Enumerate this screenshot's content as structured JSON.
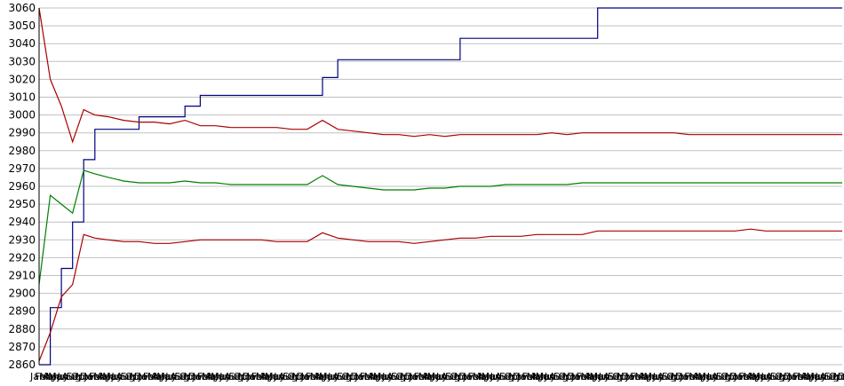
{
  "chart_data": {
    "type": "line",
    "title": "",
    "xlabel": "",
    "ylabel": "",
    "ylim": [
      2860,
      3060
    ],
    "yticks": [
      2860,
      2870,
      2880,
      2890,
      2900,
      2910,
      2920,
      2930,
      2940,
      2950,
      2960,
      2970,
      2980,
      2990,
      3000,
      3010,
      3020,
      3030,
      3040,
      3050,
      3060
    ],
    "grid": true,
    "legend": "none",
    "x_months_repeating": [
      "Jan",
      "Feb",
      "Mar",
      "Apr",
      "May",
      "Jun",
      "Jul",
      "Aug",
      "Sep",
      "Oct",
      "Nov",
      "Dec"
    ],
    "x_periods": 15,
    "series": [
      {
        "color": "#00007f",
        "values": [
          2860,
          2892,
          2914,
          2940,
          2975,
          2992,
          2992,
          2992,
          2999,
          2999,
          2999,
          3005,
          3011,
          3011,
          3011,
          3011,
          3011,
          3011,
          3011,
          3011,
          3021,
          3031,
          3031,
          3031,
          3031,
          3031,
          3031,
          3031,
          3031,
          3043,
          3043,
          3043,
          3043,
          3043,
          3043,
          3043,
          3043,
          3043,
          3060,
          3060,
          3060,
          3060,
          3060,
          3060,
          3060,
          3060,
          3060,
          3060,
          3060,
          3060,
          3060,
          3060,
          3060,
          3060,
          3060
        ]
      },
      {
        "color": "#aa0000",
        "values": [
          3060,
          3020,
          3005,
          2985,
          3003,
          3000,
          2999,
          2997,
          2996,
          2996,
          2995,
          2997,
          2994,
          2994,
          2993,
          2993,
          2993,
          2993,
          2992,
          2992,
          2997,
          2992,
          2991,
          2990,
          2989,
          2989,
          2988,
          2989,
          2988,
          2989,
          2989,
          2989,
          2989,
          2989,
          2989,
          2990,
          2989,
          2990,
          2990,
          2990,
          2990,
          2990,
          2990,
          2990,
          2989,
          2989,
          2989,
          2989,
          2989,
          2989,
          2989,
          2989,
          2989,
          2989,
          2989
        ]
      },
      {
        "color": "#007f00",
        "values": [
          2905,
          2955,
          2950,
          2945,
          2969,
          2967,
          2965,
          2963,
          2962,
          2962,
          2962,
          2963,
          2962,
          2962,
          2961,
          2961,
          2961,
          2961,
          2961,
          2961,
          2966,
          2961,
          2960,
          2959,
          2958,
          2958,
          2958,
          2959,
          2959,
          2960,
          2960,
          2960,
          2961,
          2961,
          2961,
          2961,
          2961,
          2962,
          2962,
          2962,
          2962,
          2962,
          2962,
          2962,
          2962,
          2962,
          2962,
          2962,
          2962,
          2962,
          2962,
          2962,
          2962,
          2962,
          2962
        ]
      },
      {
        "color": "#aa0000",
        "values": [
          2862,
          2878,
          2898,
          2905,
          2933,
          2931,
          2930,
          2929,
          2929,
          2928,
          2928,
          2929,
          2930,
          2930,
          2930,
          2930,
          2930,
          2929,
          2929,
          2929,
          2934,
          2931,
          2930,
          2929,
          2929,
          2929,
          2928,
          2929,
          2930,
          2931,
          2931,
          2932,
          2932,
          2932,
          2933,
          2933,
          2933,
          2933,
          2935,
          2935,
          2935,
          2935,
          2935,
          2935,
          2935,
          2935,
          2935,
          2935,
          2936,
          2935,
          2935,
          2935,
          2935,
          2935,
          2935
        ]
      }
    ]
  }
}
